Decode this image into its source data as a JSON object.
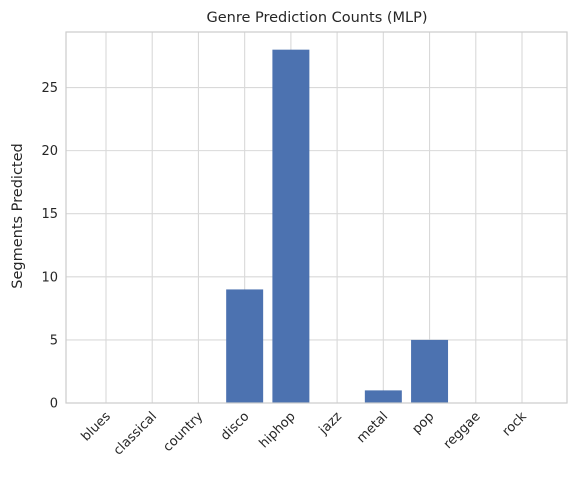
{
  "chart_data": {
    "type": "bar",
    "title": "Genre Prediction Counts (MLP)",
    "xlabel": "",
    "ylabel": "Segments Predicted",
    "categories": [
      "blues",
      "classical",
      "country",
      "disco",
      "hiphop",
      "jazz",
      "metal",
      "pop",
      "reggae",
      "rock"
    ],
    "values": [
      0,
      0,
      0,
      9,
      28,
      0,
      1,
      5,
      0,
      0
    ],
    "ylim": [
      0,
      29.4
    ],
    "yticks": [
      0,
      5,
      10,
      15,
      20,
      25
    ],
    "grid": true,
    "bar_color": "#4c72b0",
    "x_tick_rotation": 45
  }
}
